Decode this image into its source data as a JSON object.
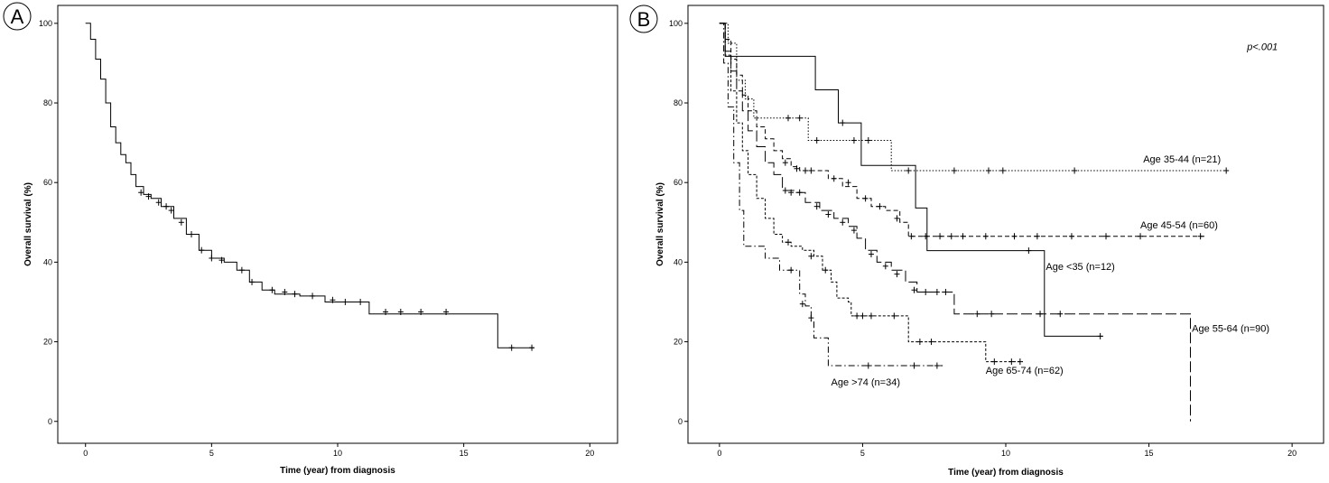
{
  "chart_data": [
    {
      "type": "line",
      "panel_label": "A",
      "xlabel": "Time (year) from diagnosis",
      "ylabel": "Overall survival (%)",
      "xlim": [
        -1.1,
        21.1
      ],
      "ylim": [
        -5.5,
        104.5
      ],
      "xticks": [
        0,
        5,
        10,
        15,
        20
      ],
      "yticks": [
        0,
        20,
        40,
        60,
        80,
        100
      ],
      "grid": false,
      "series": [
        {
          "name": "",
          "line_style": "solid",
          "color": "#000000",
          "points": [
            [
              0,
              100
            ],
            [
              0.2,
              96
            ],
            [
              0.4,
              91
            ],
            [
              0.6,
              86
            ],
            [
              0.8,
              80
            ],
            [
              1.0,
              74
            ],
            [
              1.2,
              70
            ],
            [
              1.4,
              67
            ],
            [
              1.6,
              65
            ],
            [
              1.8,
              62
            ],
            [
              2.0,
              59
            ],
            [
              2.3,
              57
            ],
            [
              2.6,
              56
            ],
            [
              3.0,
              54
            ],
            [
              3.5,
              51
            ],
            [
              4.0,
              47
            ],
            [
              4.5,
              43
            ],
            [
              5.0,
              41
            ],
            [
              5.5,
              40
            ],
            [
              6.0,
              38
            ],
            [
              6.5,
              35
            ],
            [
              7.0,
              33
            ],
            [
              7.5,
              32
            ],
            [
              8.0,
              32
            ],
            [
              8.5,
              31.5
            ],
            [
              9.0,
              31.5
            ],
            [
              9.5,
              30
            ],
            [
              10.5,
              30
            ],
            [
              11.2,
              30
            ],
            [
              11.25,
              27
            ],
            [
              16.3,
              27
            ],
            [
              16.35,
              18.5
            ],
            [
              17.8,
              18.5
            ]
          ],
          "censored": [
            [
              2.2,
              57.5
            ],
            [
              2.5,
              56.5
            ],
            [
              2.9,
              55
            ],
            [
              3.2,
              54
            ],
            [
              3.4,
              53
            ],
            [
              3.8,
              50
            ],
            [
              4.2,
              47
            ],
            [
              4.6,
              43
            ],
            [
              5.0,
              41
            ],
            [
              5.4,
              40.5
            ],
            [
              6.2,
              38
            ],
            [
              6.6,
              35
            ],
            [
              7.4,
              33
            ],
            [
              7.9,
              32.5
            ],
            [
              8.3,
              32
            ],
            [
              9.0,
              31.5
            ],
            [
              9.8,
              30.5
            ],
            [
              10.3,
              30
            ],
            [
              10.9,
              30
            ],
            [
              11.9,
              27.5
            ],
            [
              12.5,
              27.5
            ],
            [
              13.3,
              27.5
            ],
            [
              14.3,
              27.5
            ],
            [
              16.9,
              18.5
            ],
            [
              17.7,
              18.5
            ]
          ]
        }
      ]
    },
    {
      "type": "line",
      "panel_label": "B",
      "xlabel": "Time (year) from diagnosis",
      "ylabel": "Overall survival (%)",
      "annotation": "p<.001",
      "xlim": [
        -1.1,
        21.1
      ],
      "ylim": [
        -5.5,
        104.5
      ],
      "xticks": [
        0,
        5,
        10,
        15,
        20
      ],
      "yticks": [
        0,
        20,
        40,
        60,
        80,
        100
      ],
      "grid": false,
      "series": [
        {
          "name": "Age <35 (n=12)",
          "line_style": "solid",
          "label_pos": [
            11.4,
            38
          ],
          "points": [
            [
              0,
              100
            ],
            [
              0.15,
              100
            ],
            [
              0.2,
              91.7
            ],
            [
              3.3,
              91.7
            ],
            [
              3.35,
              83.3
            ],
            [
              4.1,
              83.3
            ],
            [
              4.15,
              75
            ],
            [
              4.9,
              75
            ],
            [
              4.95,
              64.3
            ],
            [
              6.8,
              64.3
            ],
            [
              6.85,
              53.6
            ],
            [
              7.2,
              53.6
            ],
            [
              7.25,
              42.9
            ],
            [
              11.3,
              42.9
            ],
            [
              11.35,
              21.4
            ],
            [
              13.4,
              21.4
            ]
          ],
          "censored": [
            [
              4.3,
              75
            ],
            [
              10.8,
              42.9
            ],
            [
              13.3,
              21.4
            ]
          ]
        },
        {
          "name": "Age 35-44 (n=21)",
          "line_style": "dotted",
          "label_pos": [
            14.8,
            65
          ],
          "points": [
            [
              0,
              100
            ],
            [
              0.3,
              95
            ],
            [
              0.6,
              85.7
            ],
            [
              0.9,
              81
            ],
            [
              1.2,
              76.2
            ],
            [
              2.7,
              76.2
            ],
            [
              3.1,
              70.6
            ],
            [
              5.7,
              70.6
            ],
            [
              6.0,
              63
            ],
            [
              17.8,
              63
            ]
          ],
          "censored": [
            [
              2.4,
              76.2
            ],
            [
              2.8,
              76.2
            ],
            [
              3.4,
              70.6
            ],
            [
              4.7,
              70.6
            ],
            [
              5.2,
              70.6
            ],
            [
              6.6,
              63
            ],
            [
              8.2,
              63
            ],
            [
              9.4,
              63
            ],
            [
              9.9,
              63
            ],
            [
              12.4,
              63
            ],
            [
              17.7,
              63
            ]
          ]
        },
        {
          "name": "Age 45-54 (n=60)",
          "line_style": "dashed",
          "label_pos": [
            14.7,
            48.5
          ],
          "points": [
            [
              0,
              100
            ],
            [
              0.2,
              96
            ],
            [
              0.4,
              91
            ],
            [
              0.6,
              87
            ],
            [
              0.8,
              82
            ],
            [
              1.0,
              78
            ],
            [
              1.3,
              74
            ],
            [
              1.6,
              71
            ],
            [
              1.9,
              68
            ],
            [
              2.2,
              66
            ],
            [
              2.5,
              64
            ],
            [
              2.8,
              63
            ],
            [
              3.3,
              63
            ],
            [
              3.8,
              61
            ],
            [
              4.3,
              59
            ],
            [
              4.8,
              56
            ],
            [
              5.3,
              54
            ],
            [
              5.8,
              53
            ],
            [
              6.3,
              50
            ],
            [
              6.6,
              46.5
            ],
            [
              17,
              46.5
            ]
          ],
          "censored": [
            [
              2.3,
              65
            ],
            [
              2.7,
              63.5
            ],
            [
              3.0,
              63
            ],
            [
              3.2,
              63
            ],
            [
              4.0,
              61
            ],
            [
              4.5,
              60
            ],
            [
              5.1,
              56
            ],
            [
              5.6,
              54
            ],
            [
              6.2,
              51
            ],
            [
              6.7,
              46.5
            ],
            [
              7.2,
              46.5
            ],
            [
              7.7,
              46.5
            ],
            [
              8.1,
              46.5
            ],
            [
              8.5,
              46.5
            ],
            [
              9.3,
              46.5
            ],
            [
              10.3,
              46.5
            ],
            [
              11.1,
              46.5
            ],
            [
              12.3,
              46.5
            ],
            [
              13.5,
              46.5
            ],
            [
              14.7,
              46.5
            ],
            [
              16.8,
              46.5
            ]
          ]
        },
        {
          "name": "Age 55-64 (n=90)",
          "line_style": "long-dash",
          "label_pos": [
            16.5,
            22.5
          ],
          "points": [
            [
              0,
              100
            ],
            [
              0.2,
              93
            ],
            [
              0.4,
              88
            ],
            [
              0.6,
              83
            ],
            [
              0.8,
              78
            ],
            [
              1.0,
              73
            ],
            [
              1.3,
              69
            ],
            [
              1.6,
              65
            ],
            [
              1.9,
              62
            ],
            [
              2.2,
              58
            ],
            [
              2.6,
              57.5
            ],
            [
              3.0,
              55
            ],
            [
              3.5,
              53
            ],
            [
              4.0,
              51
            ],
            [
              4.5,
              49
            ],
            [
              4.8,
              46
            ],
            [
              5.1,
              43
            ],
            [
              5.5,
              40
            ],
            [
              6.0,
              38
            ],
            [
              6.5,
              35
            ],
            [
              6.9,
              32.5
            ],
            [
              7.8,
              32.5
            ],
            [
              8.2,
              27
            ],
            [
              16.4,
              27
            ],
            [
              16.45,
              0
            ]
          ],
          "censored": [
            [
              2.3,
              58
            ],
            [
              2.5,
              57.5
            ],
            [
              2.8,
              57.5
            ],
            [
              3.4,
              54
            ],
            [
              3.8,
              52
            ],
            [
              4.3,
              50
            ],
            [
              4.7,
              48
            ],
            [
              5.3,
              42
            ],
            [
              5.8,
              39
            ],
            [
              6.2,
              37
            ],
            [
              6.8,
              33
            ],
            [
              7.2,
              32.5
            ],
            [
              7.6,
              32.5
            ],
            [
              7.9,
              32.5
            ],
            [
              9.0,
              27
            ],
            [
              9.5,
              27
            ],
            [
              11.2,
              27
            ],
            [
              11.9,
              27
            ]
          ]
        },
        {
          "name": "Age 65-74 (n=62)",
          "line_style": "short-dash",
          "label_pos": [
            9.3,
            12
          ],
          "points": [
            [
              0,
              100
            ],
            [
              0.2,
              92
            ],
            [
              0.4,
              83
            ],
            [
              0.6,
              75
            ],
            [
              0.8,
              68
            ],
            [
              1.0,
              62
            ],
            [
              1.3,
              56
            ],
            [
              1.6,
              51
            ],
            [
              1.9,
              47
            ],
            [
              2.2,
              45
            ],
            [
              2.5,
              44
            ],
            [
              2.9,
              43
            ],
            [
              3.3,
              41.5
            ],
            [
              3.6,
              38
            ],
            [
              3.9,
              35
            ],
            [
              4.1,
              31
            ],
            [
              4.5,
              30
            ],
            [
              4.6,
              26.5
            ],
            [
              6.3,
              26.5
            ],
            [
              6.6,
              20
            ],
            [
              9.2,
              20
            ],
            [
              9.3,
              15
            ],
            [
              10.6,
              15
            ]
          ],
          "censored": [
            [
              2.4,
              45
            ],
            [
              3.2,
              41.5
            ],
            [
              3.7,
              38
            ],
            [
              4.8,
              26.5
            ],
            [
              5.0,
              26.5
            ],
            [
              5.3,
              26.5
            ],
            [
              6.1,
              26.5
            ],
            [
              7.0,
              20
            ],
            [
              7.4,
              20
            ],
            [
              9.6,
              15
            ],
            [
              10.2,
              15
            ],
            [
              10.5,
              15
            ]
          ]
        },
        {
          "name": "Age >74 (n=34)",
          "line_style": "dash-dot",
          "label_pos": [
            3.9,
            9
          ],
          "points": [
            [
              0,
              100
            ],
            [
              0.15,
              90
            ],
            [
              0.3,
              79
            ],
            [
              0.5,
              65
            ],
            [
              0.7,
              53
            ],
            [
              0.85,
              44
            ],
            [
              1.5,
              44
            ],
            [
              1.6,
              41
            ],
            [
              2.0,
              41
            ],
            [
              2.1,
              38
            ],
            [
              2.7,
              38
            ],
            [
              2.8,
              32
            ],
            [
              3.0,
              29
            ],
            [
              3.2,
              25
            ],
            [
              3.3,
              21
            ],
            [
              3.7,
              21
            ],
            [
              3.8,
              14
            ],
            [
              7.8,
              14
            ]
          ],
          "censored": [
            [
              2.5,
              38
            ],
            [
              2.9,
              29.5
            ],
            [
              3.2,
              26
            ],
            [
              5.2,
              14
            ],
            [
              6.8,
              14
            ],
            [
              7.6,
              14
            ]
          ]
        }
      ]
    }
  ]
}
